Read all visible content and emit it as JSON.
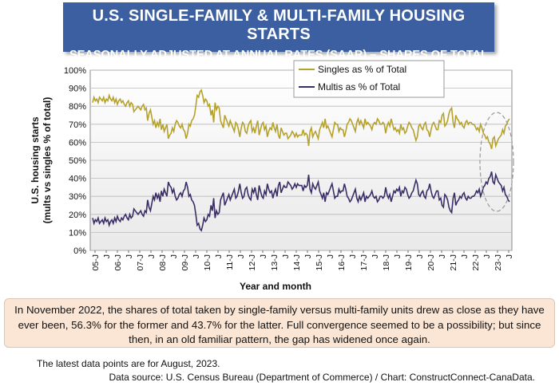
{
  "header": {
    "title": "U.S. SINGLE-FAMILY & MULTI-FAMILY HOUSING STARTS",
    "subtitle": "SEASONALLY ADJUSTED AT ANNUAL RATES (SAAR) – SHARES OF TOTAL"
  },
  "chart_data": {
    "type": "line",
    "title": "U.S. SINGLE-FAMILY & MULTI-FAMILY HOUSING STARTS",
    "xlabel": "Year and month",
    "ylabel_lines": [
      "U.S. housing starts",
      "(mults vs singles % of total)"
    ],
    "ylim": [
      0,
      100
    ],
    "y_ticks": [
      "0%",
      "10%",
      "20%",
      "30%",
      "40%",
      "50%",
      "60%",
      "70%",
      "80%",
      "90%",
      "100%"
    ],
    "x_tick_labels": [
      "05-J",
      "J",
      "06-J",
      "J",
      "07-J",
      "J",
      "08-J",
      "J",
      "09-J",
      "J",
      "10-J",
      "J",
      "11-J",
      "J",
      "12-J",
      "J",
      "13-J",
      "J",
      "14-J",
      "J",
      "15-J",
      "J",
      "16-J",
      "J",
      "17-J",
      "J",
      "18-J",
      "J",
      "19-J",
      "J",
      "20-J",
      "J",
      "21-J",
      "J",
      "22-J",
      "J",
      "23-J",
      "J"
    ],
    "x_start": "2005-01",
    "x_end": "2023-08",
    "grid": true,
    "legend_position": "top-right",
    "series": [
      {
        "name": "Singles as % of Total",
        "color": "#b5a22d",
        "values": [
          82,
          85,
          83,
          84,
          82,
          85,
          84,
          83,
          85,
          82,
          84,
          83,
          86,
          84,
          83,
          85,
          82,
          84,
          81,
          83,
          84,
          82,
          83,
          81,
          80,
          82,
          83,
          80,
          82,
          81,
          77,
          78,
          79,
          80,
          79,
          78,
          80,
          81,
          78,
          79,
          72,
          76,
          78,
          74,
          70,
          72,
          68,
          71,
          69,
          73,
          67,
          70,
          66,
          68,
          70,
          62,
          64,
          65,
          68,
          66,
          70,
          72,
          71,
          69,
          68,
          70,
          67,
          66,
          62,
          65,
          70,
          69,
          72,
          73,
          75,
          80,
          86,
          85,
          88,
          89,
          86,
          82,
          84,
          83,
          80,
          81,
          75,
          78,
          71,
          82,
          78,
          80,
          79,
          72,
          70,
          68,
          75,
          73,
          71,
          69,
          72,
          70,
          68,
          66,
          71,
          70,
          67,
          63,
          68,
          71,
          70,
          66,
          65,
          69,
          71,
          72,
          66,
          68,
          65,
          69,
          72,
          64,
          67,
          70,
          71,
          67,
          69,
          63,
          66,
          68,
          67,
          71,
          68,
          66,
          70,
          64,
          62,
          68,
          66,
          64,
          65,
          65,
          62,
          63,
          64,
          66,
          65,
          63,
          65,
          63,
          64,
          64,
          64,
          67,
          64,
          65,
          64,
          58,
          66,
          68,
          63,
          65,
          66,
          64,
          62,
          67,
          69,
          71,
          68,
          73,
          68,
          69,
          67,
          65,
          63,
          67,
          71,
          70,
          70,
          66,
          68,
          67,
          67,
          63,
          66,
          70,
          71,
          73,
          72,
          70,
          68,
          66,
          71,
          73,
          70,
          72,
          70,
          68,
          73,
          70,
          71,
          70,
          69,
          67,
          70,
          71,
          70,
          73,
          72,
          70,
          70,
          71,
          70,
          65,
          69,
          71,
          69,
          73,
          70,
          67,
          68,
          66,
          67,
          65,
          70,
          67,
          68,
          65,
          66,
          69,
          71,
          70,
          68,
          67,
          64,
          61,
          63,
          69,
          70,
          68,
          67,
          70,
          71,
          67,
          66,
          63,
          67,
          70,
          71,
          69,
          67,
          67,
          72,
          71,
          75,
          76,
          69,
          70,
          72,
          76,
          78,
          79,
          71,
          68,
          75,
          73,
          72,
          70,
          71,
          69,
          68,
          71,
          72,
          70,
          71,
          71,
          70,
          70,
          69,
          67,
          68,
          66,
          70,
          68,
          65,
          64,
          62,
          63,
          60,
          59,
          56.3,
          62,
          63,
          58,
          60,
          62,
          63,
          64,
          67,
          65,
          69,
          70,
          72,
          73
        ]
      },
      {
        "name": "Multis as % of Total",
        "color": "#3b2e66",
        "values": [
          18,
          15,
          17,
          16,
          18,
          15,
          16,
          17,
          15,
          18,
          16,
          17,
          14,
          16,
          17,
          15,
          18,
          16,
          19,
          17,
          16,
          18,
          17,
          19,
          20,
          18,
          17,
          20,
          18,
          19,
          23,
          22,
          21,
          20,
          21,
          22,
          20,
          19,
          22,
          21,
          28,
          24,
          22,
          26,
          30,
          28,
          32,
          29,
          31,
          27,
          33,
          30,
          34,
          32,
          30,
          38,
          36,
          35,
          32,
          34,
          30,
          28,
          29,
          31,
          32,
          30,
          33,
          34,
          38,
          35,
          30,
          31,
          28,
          27,
          25,
          20,
          14,
          15,
          12,
          11,
          14,
          18,
          16,
          17,
          20,
          19,
          25,
          22,
          29,
          18,
          22,
          20,
          21,
          28,
          30,
          32,
          25,
          27,
          29,
          31,
          28,
          30,
          32,
          34,
          29,
          30,
          33,
          37,
          32,
          29,
          30,
          34,
          35,
          31,
          29,
          28,
          34,
          32,
          35,
          31,
          28,
          36,
          33,
          30,
          29,
          33,
          31,
          37,
          34,
          32,
          33,
          29,
          32,
          34,
          30,
          36,
          38,
          32,
          34,
          36,
          35,
          35,
          38,
          37,
          36,
          34,
          35,
          37,
          35,
          37,
          36,
          36,
          36,
          33,
          36,
          35,
          36,
          42,
          34,
          32,
          37,
          35,
          34,
          36,
          38,
          33,
          31,
          29,
          32,
          27,
          32,
          31,
          33,
          35,
          37,
          33,
          29,
          30,
          30,
          34,
          32,
          33,
          33,
          37,
          34,
          30,
          29,
          27,
          28,
          30,
          32,
          34,
          29,
          27,
          30,
          28,
          30,
          32,
          27,
          30,
          29,
          30,
          31,
          33,
          30,
          29,
          30,
          27,
          28,
          30,
          30,
          29,
          30,
          35,
          31,
          29,
          31,
          27,
          30,
          33,
          32,
          34,
          33,
          35,
          30,
          33,
          32,
          35,
          34,
          31,
          29,
          30,
          32,
          33,
          36,
          39,
          37,
          31,
          30,
          32,
          33,
          30,
          29,
          33,
          34,
          37,
          33,
          30,
          29,
          31,
          33,
          33,
          28,
          29,
          25,
          24,
          31,
          30,
          28,
          24,
          22,
          21,
          29,
          32,
          25,
          27,
          28,
          30,
          29,
          31,
          32,
          29,
          28,
          30,
          29,
          29,
          30,
          30,
          31,
          33,
          32,
          34,
          30,
          32,
          35,
          36,
          38,
          37,
          40,
          41,
          43.7,
          38,
          37,
          42,
          40,
          38,
          37,
          36,
          33,
          35,
          31,
          30,
          28,
          27
        ]
      }
    ]
  },
  "caption": {
    "line1": "In November 2022, the shares of total taken by single-family versus multi-family units drew as close as they have",
    "line2": "ever been, 56.3% for the former and 43.7% for the latter. Full convergence seemed to be a possibility; but since",
    "line3": "then, in an old familiar pattern, the gap has widened once again."
  },
  "note": "The latest data points are for August, 2023.",
  "source": "Data source: U.S. Census Bureau (Department of Commerce) / Chart: ConstructConnect-CanaData."
}
